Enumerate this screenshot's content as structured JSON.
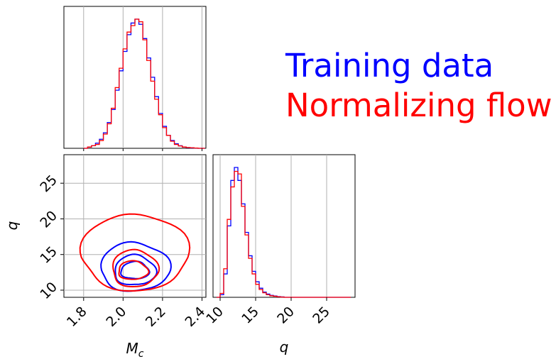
{
  "chart_data": {
    "type": "corner",
    "legend": {
      "placement": "top-right",
      "entries": [
        {
          "label": "Training data",
          "color": "#0000ff"
        },
        {
          "label": "Normalizing flow",
          "color": "#ff0000"
        }
      ]
    },
    "colors": {
      "training": "#0000ff",
      "flow": "#ff0000",
      "grid": "#b0b0b0"
    },
    "parameters": [
      {
        "name": "Mc",
        "label_base": "M",
        "label_sub": "c",
        "xlim": [
          1.7,
          2.42
        ],
        "ticks": [
          1.8,
          2.0,
          2.2,
          2.4
        ],
        "tick_labels": [
          "1.8",
          "2.0",
          "2.2",
          "2.4"
        ]
      },
      {
        "name": "q",
        "label_base": "q",
        "label_sub": "",
        "xlim": [
          9.0,
          29.0
        ],
        "ticks": [
          10,
          15,
          20,
          25
        ],
        "tick_labels": [
          "10",
          "15",
          "20",
          "25"
        ]
      }
    ],
    "hist_Mc": {
      "x": [
        1.8,
        1.82,
        1.84,
        1.86,
        1.88,
        1.9,
        1.92,
        1.94,
        1.96,
        1.98,
        2.0,
        2.02,
        2.04,
        2.06,
        2.08,
        2.1,
        2.12,
        2.14,
        2.16,
        2.18,
        2.2,
        2.22,
        2.24,
        2.26,
        2.28,
        2.3,
        2.32,
        2.34,
        2.36,
        2.38,
        2.4
      ],
      "series": [
        {
          "name": "Training data",
          "values": [
            0.0,
            0.01,
            0.02,
            0.04,
            0.07,
            0.12,
            0.2,
            0.3,
            0.45,
            0.6,
            0.75,
            0.88,
            0.97,
            1.0,
            0.96,
            0.85,
            0.7,
            0.55,
            0.4,
            0.27,
            0.17,
            0.1,
            0.06,
            0.035,
            0.02,
            0.01,
            0.005,
            0.003,
            0.002,
            0.0,
            0.0
          ]
        },
        {
          "name": "Normalizing flow",
          "values": [
            0.0,
            0.01,
            0.02,
            0.03,
            0.06,
            0.11,
            0.19,
            0.31,
            0.47,
            0.62,
            0.77,
            0.9,
            0.95,
            1.0,
            0.98,
            0.84,
            0.68,
            0.52,
            0.38,
            0.26,
            0.16,
            0.1,
            0.055,
            0.03,
            0.018,
            0.01,
            0.006,
            0.004,
            0.002,
            0.0,
            0.0
          ]
        }
      ]
    },
    "hist_q": {
      "x": [
        9.5,
        10.0,
        10.5,
        11.0,
        11.5,
        12.0,
        12.5,
        13.0,
        13.5,
        14.0,
        14.5,
        15.0,
        15.5,
        16.0,
        16.5,
        17.0,
        17.5,
        18.0,
        18.5,
        19.0,
        20.0,
        22.0,
        25.0,
        28.0
      ],
      "series": [
        {
          "name": "Training data",
          "values": [
            0.0,
            0.02,
            0.18,
            0.55,
            0.9,
            1.0,
            0.9,
            0.72,
            0.5,
            0.32,
            0.2,
            0.12,
            0.07,
            0.04,
            0.025,
            0.015,
            0.01,
            0.005,
            0.003,
            0.0,
            0.0,
            0.0,
            0.0,
            0.0
          ]
        },
        {
          "name": "Normalizing flow",
          "values": [
            0.0,
            0.03,
            0.22,
            0.6,
            0.85,
            0.97,
            0.95,
            0.7,
            0.48,
            0.3,
            0.18,
            0.1,
            0.06,
            0.035,
            0.02,
            0.012,
            0.008,
            0.004,
            0.002,
            0.0,
            0.0,
            0.0,
            0.0,
            0.0
          ]
        }
      ]
    },
    "contours": {
      "series": [
        {
          "name": "Training data",
          "levels": [
            {
              "cx": 2.06,
              "cy": 12.6,
              "rx": 0.072,
              "ry": 1.2
            },
            {
              "cx": 2.06,
              "cy": 12.5,
              "rx": 0.105,
              "ry": 2.1
            },
            {
              "cx": 2.06,
              "cy": 12.8,
              "rx": 0.175,
              "ry": 3.4
            }
          ]
        },
        {
          "name": "Normalizing flow",
          "levels": [
            {
              "cx": 2.05,
              "cy": 12.6,
              "rx": 0.075,
              "ry": 1.3
            },
            {
              "cx": 2.06,
              "cy": 12.7,
              "rx": 0.115,
              "ry": 2.6
            },
            {
              "cx": 2.06,
              "cy": 14.6,
              "rx": 0.27,
              "ry": 5.4
            }
          ]
        }
      ]
    }
  }
}
